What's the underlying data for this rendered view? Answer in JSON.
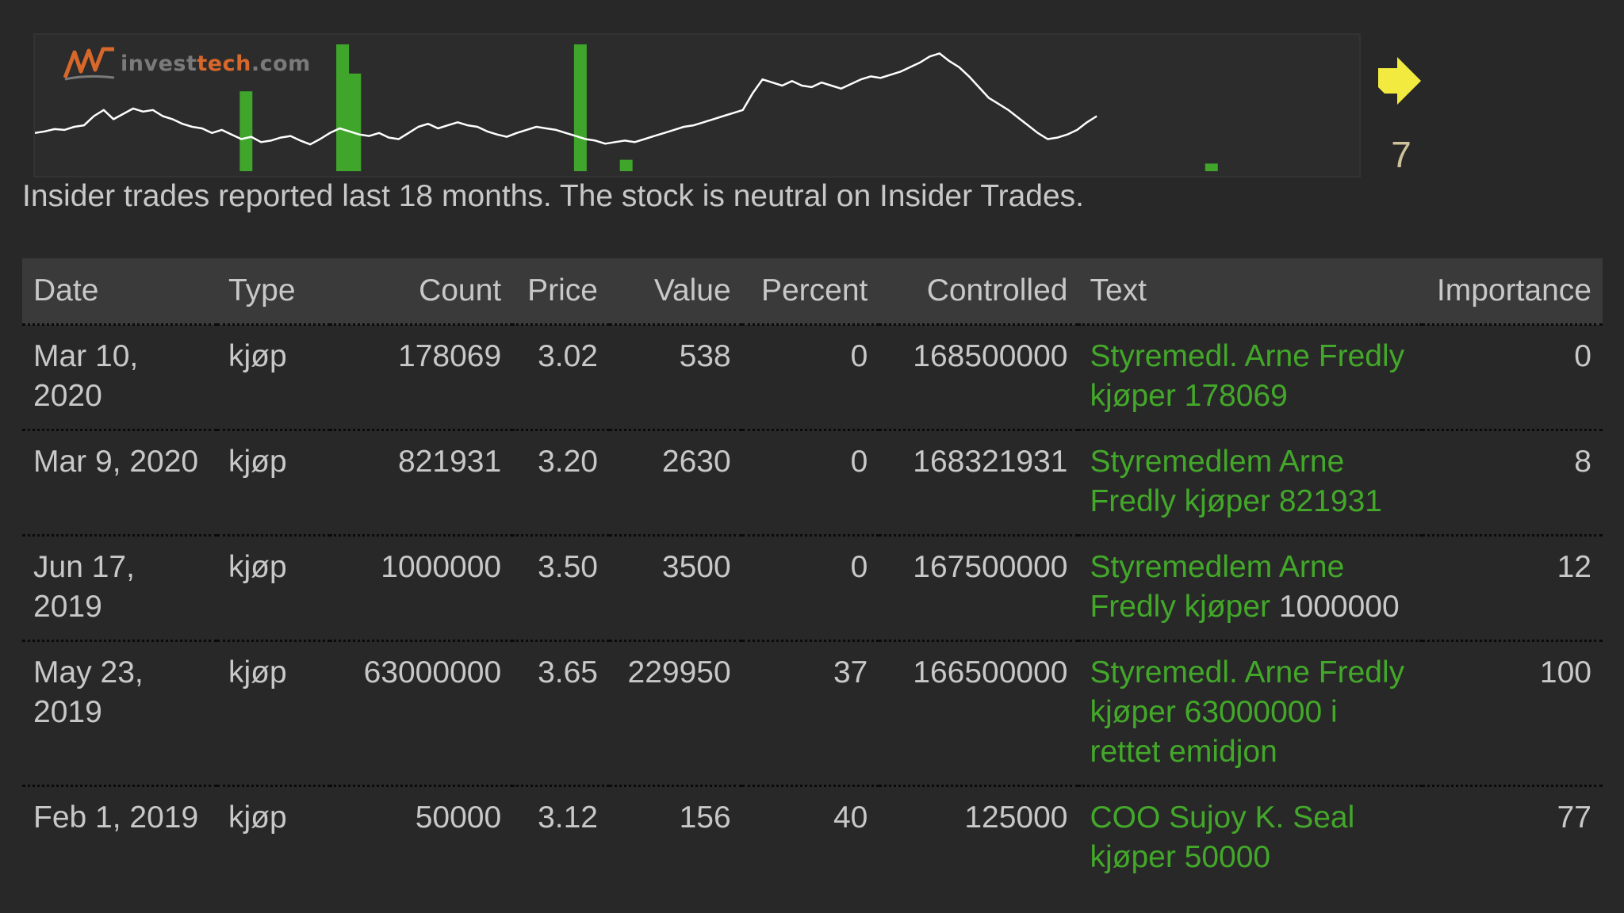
{
  "logo": {
    "prefix": "invest",
    "accent": "tech",
    "suffix": ".com"
  },
  "signal": {
    "icon": "right-arrow-icon",
    "color": "#f2ea3e",
    "score": "7"
  },
  "summary": "Insider trades reported last 18 months. The stock is neutral on Insider Trades.",
  "colors": {
    "background": "#282828",
    "header": "#3a3a3a",
    "link_green": "#43a82a",
    "volume_bar": "#3fa52b",
    "price_line": "#ffffff",
    "text": "#c8c8c8"
  },
  "columns": [
    "Date",
    "Type",
    "Count",
    "Price",
    "Value",
    "Percent",
    "Controlled",
    "Text",
    "Importance"
  ],
  "rows": [
    {
      "date": "Mar 10, 2020",
      "type": "kjøp",
      "count": "178069",
      "price": "3.02",
      "value": "538",
      "percent": "0",
      "controlled": "168500000",
      "text": "Styremedl. Arne Fredly kjøper 178069",
      "text_plain": "",
      "importance": "0"
    },
    {
      "date": "Mar 9, 2020",
      "type": "kjøp",
      "count": "821931",
      "price": "3.20",
      "value": "2630",
      "percent": "0",
      "controlled": "168321931",
      "text": "Styremedlem Arne Fredly kjøper 821931",
      "text_plain": "",
      "importance": "8"
    },
    {
      "date": "Jun 17, 2019",
      "type": "kjøp",
      "count": "1000000",
      "price": "3.50",
      "value": "3500",
      "percent": "0",
      "controlled": "167500000",
      "text": "Styremedlem Arne Fredly kjøper",
      "text_plain": " 1000000",
      "importance": "12"
    },
    {
      "date": "May 23, 2019",
      "type": "kjøp",
      "count": "63000000",
      "price": "3.65",
      "value": "229950",
      "percent": "37",
      "controlled": "166500000",
      "text": "Styremedl. Arne Fredly kjøper 63000000 i rettet emidjon",
      "text_plain": "",
      "importance": "100"
    },
    {
      "date": "Feb 1, 2019",
      "type": "kjøp",
      "count": "50000",
      "price": "3.12",
      "value": "156",
      "percent": "40",
      "controlled": "125000",
      "text": "COO Sujoy K. Seal kjøper 50000",
      "text_plain": "",
      "importance": "77"
    }
  ],
  "chart_data": {
    "type": "line",
    "series": [
      {
        "kind": "price",
        "values": [
          3.0,
          3.02,
          3.05,
          3.04,
          3.08,
          3.1,
          3.22,
          3.3,
          3.18,
          3.25,
          3.32,
          3.28,
          3.3,
          3.22,
          3.18,
          3.12,
          3.08,
          3.06,
          3.0,
          3.04,
          2.98,
          2.92,
          2.95,
          2.88,
          2.9,
          2.94,
          2.96,
          2.9,
          2.85,
          2.92,
          3.0,
          3.06,
          3.02,
          2.98,
          2.96,
          3.0,
          2.94,
          2.92,
          3.0,
          3.08,
          3.12,
          3.06,
          3.1,
          3.14,
          3.1,
          3.08,
          3.02,
          2.98,
          2.95,
          3.0,
          3.04,
          3.08,
          3.06,
          3.04,
          3.0,
          2.96,
          2.92,
          2.9,
          2.86,
          2.88,
          2.9,
          2.88,
          2.92,
          2.96,
          3.0,
          3.04,
          3.08,
          3.1,
          3.14,
          3.18,
          3.22,
          3.26,
          3.3,
          3.52,
          3.7,
          3.66,
          3.62,
          3.68,
          3.62,
          3.6,
          3.66,
          3.62,
          3.58,
          3.64,
          3.7,
          3.74,
          3.72,
          3.76,
          3.8,
          3.86,
          3.92,
          4.0,
          4.04,
          3.94,
          3.86,
          3.74,
          3.6,
          3.46,
          3.38,
          3.3,
          3.2,
          3.1,
          3.0,
          2.92,
          2.94,
          2.98,
          3.04,
          3.14,
          3.22
        ]
      },
      {
        "kind": "insider-volume",
        "values": [
          0,
          0,
          0,
          0,
          0,
          0,
          0,
          0,
          0,
          0,
          0,
          0,
          0,
          0,
          0,
          0,
          0,
          0,
          0,
          0,
          0,
          0,
          0,
          0,
          0,
          0,
          0,
          0,
          0,
          0,
          0,
          0,
          0,
          0,
          0,
          0,
          0,
          0,
          0,
          0,
          0,
          0,
          0,
          0,
          0,
          0,
          0,
          0,
          0,
          0,
          0,
          0,
          0,
          0,
          0,
          0,
          0,
          0,
          0,
          0,
          0,
          0,
          0,
          0,
          0,
          0,
          0,
          0,
          0,
          0,
          0,
          0,
          0,
          0,
          0,
          0,
          0,
          0,
          0,
          0,
          0,
          0,
          0,
          0,
          0,
          0,
          0,
          0,
          0,
          0,
          0,
          0,
          0,
          0,
          0,
          0,
          0,
          0,
          0,
          0,
          0,
          0,
          0,
          0,
          0,
          0,
          0,
          0,
          0,
          0,
          0
        ],
        "bars": [
          {
            "i": 17.5,
            "v": 0.63
          },
          {
            "i": 25.5,
            "v": 1.0
          },
          {
            "i": 26.5,
            "v": 0.77
          },
          {
            "i": 45.2,
            "v": 1.0
          },
          {
            "i": 49.0,
            "v": 0.09
          },
          {
            "i": 97.5,
            "v": 0.06
          }
        ]
      }
    ],
    "xlim": [
      0,
      110
    ],
    "ylim": [
      2.5,
      4.2
    ],
    "grid": false,
    "legend": "none"
  }
}
